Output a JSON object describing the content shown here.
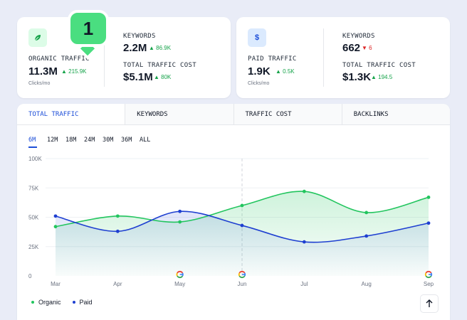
{
  "organic": {
    "label": "ORGANIC TRAFFIC",
    "value": "11.3M",
    "delta": "215.9K",
    "sub": "Clicks/mo",
    "keywords_label": "KEYWORDS",
    "keywords_value": "2.2M",
    "keywords_delta": "86.9K",
    "cost_label": "TOTAL TRAFFIC COST",
    "cost_value": "$5.1M",
    "cost_delta": "80K",
    "icon": "leaf-icon"
  },
  "badge": {
    "number": "1"
  },
  "paid": {
    "label": "PAID TRAFFIC",
    "value": "1.9K",
    "delta": "0.5K",
    "sub": "Clicks/mo",
    "keywords_label": "KEYWORDS",
    "keywords_value": "662",
    "keywords_delta": "6",
    "cost_label": "TOTAL TRAFFIC COST",
    "cost_value": "$1.3K",
    "cost_delta": "194.5",
    "icon": "dollar-icon"
  },
  "tabs": [
    "TOTAL TRAFFIC",
    "KEYWORDS",
    "TRAFFIC COST",
    "BACKLINKS"
  ],
  "ranges": [
    "6M",
    "12M",
    "18M",
    "24M",
    "30M",
    "36M",
    "ALL"
  ],
  "colors": {
    "organic": "#22c55e",
    "paid": "#1e3fd1",
    "accent": "#1d4ed8"
  },
  "chart_data": {
    "type": "area",
    "categories": [
      "Mar",
      "Apr",
      "May",
      "Jun",
      "Jul",
      "Aug",
      "Sep"
    ],
    "series": [
      {
        "name": "Organic",
        "values": [
          42,
          51,
          46,
          60,
          72,
          54,
          67
        ]
      },
      {
        "name": "Paid",
        "values": [
          51,
          38,
          55,
          43,
          29,
          34,
          45
        ]
      }
    ],
    "y_ticks": [
      "100K",
      "75K",
      "50K",
      "25K",
      "0"
    ],
    "ylim": [
      0,
      100
    ],
    "google_update_markers": [
      "May",
      "Jun",
      "Sep"
    ],
    "grid": true,
    "legend": "bottom-left"
  }
}
